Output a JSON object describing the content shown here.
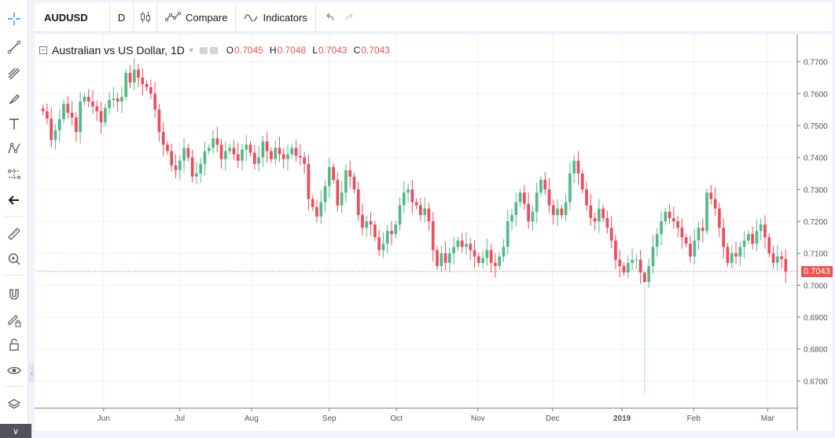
{
  "toolbar": {
    "symbol": "AUDUSD",
    "interval": "D",
    "compare_label": "Compare",
    "indicators_label": "Indicators"
  },
  "left_tools": [
    "crosshair-icon",
    "trend-line-icon",
    "fib-icon",
    "brush-icon",
    "text-icon",
    "pattern-icon",
    "prediction-icon",
    "back-arrow-icon",
    "ruler-icon",
    "zoom-in-icon",
    "magnet-icon",
    "lock-drawing-icon",
    "unlock-icon",
    "eye-icon",
    "layers-icon"
  ],
  "legend": {
    "title": "Australian vs US Dollar, 1D",
    "o_label": "O",
    "o_value": "0.7045",
    "h_label": "H",
    "h_value": "0.7048",
    "l_label": "L",
    "l_value": "0.7043",
    "c_label": "C",
    "c_value": "0.7043"
  },
  "last_price": "0.7043",
  "colors": {
    "up": "#53b987",
    "down": "#eb4d5c",
    "grid": "#eef0f4",
    "last_line": "#ef5350"
  },
  "chart_data": {
    "type": "candlestick",
    "title": "Australian vs US Dollar, 1D",
    "ylim": [
      0.6615,
      0.7785
    ],
    "y_ticks": [
      "0.7700",
      "0.7600",
      "0.7500",
      "0.7400",
      "0.7300",
      "0.7200",
      "0.7100",
      "0.7000",
      "0.6900",
      "0.6800",
      "0.6700"
    ],
    "x_ticks": [
      "Jun",
      "Jul",
      "Aug",
      "Sep",
      "Oct",
      "Nov",
      "Dec",
      "2019",
      "Feb",
      "Mar"
    ],
    "grid": true,
    "last_price": 0.7043,
    "close_series": [
      0.7545,
      0.7522,
      0.7455,
      0.7485,
      0.752,
      0.7568,
      0.754,
      0.7525,
      0.748,
      0.7575,
      0.759,
      0.7575,
      0.756,
      0.7545,
      0.751,
      0.7555,
      0.758,
      0.7585,
      0.7575,
      0.759,
      0.7665,
      0.7635,
      0.7675,
      0.765,
      0.763,
      0.762,
      0.76,
      0.755,
      0.748,
      0.744,
      0.742,
      0.7375,
      0.736,
      0.739,
      0.743,
      0.74,
      0.734,
      0.735,
      0.738,
      0.742,
      0.743,
      0.746,
      0.744,
      0.7395,
      0.742,
      0.743,
      0.741,
      0.739,
      0.7425,
      0.744,
      0.7415,
      0.738,
      0.74,
      0.745,
      0.742,
      0.7395,
      0.743,
      0.741,
      0.7395,
      0.741,
      0.743,
      0.7405,
      0.74,
      0.738,
      0.727,
      0.7245,
      0.7215,
      0.726,
      0.731,
      0.737,
      0.733,
      0.725,
      0.729,
      0.736,
      0.734,
      0.73,
      0.722,
      0.718,
      0.72,
      0.719,
      0.715,
      0.711,
      0.713,
      0.717,
      0.716,
      0.719,
      0.725,
      0.729,
      0.73,
      0.726,
      0.725,
      0.722,
      0.724,
      0.72,
      0.711,
      0.706,
      0.71,
      0.707,
      0.71,
      0.712,
      0.714,
      0.712,
      0.713,
      0.711,
      0.709,
      0.707,
      0.7085,
      0.711,
      0.707,
      0.706,
      0.709,
      0.712,
      0.72,
      0.722,
      0.726,
      0.729,
      0.7255,
      0.72,
      0.723,
      0.729,
      0.733,
      0.73,
      0.725,
      0.722,
      0.724,
      0.722,
      0.726,
      0.735,
      0.739,
      0.735,
      0.73,
      0.725,
      0.721,
      0.72,
      0.724,
      0.721,
      0.718,
      0.714,
      0.708,
      0.706,
      0.704,
      0.707,
      0.708,
      0.708,
      0.704,
      0.701,
      0.706,
      0.712,
      0.716,
      0.72,
      0.723,
      0.721,
      0.72,
      0.718,
      0.715,
      0.713,
      0.709,
      0.714,
      0.718,
      0.717,
      0.729,
      0.727,
      0.724,
      0.718,
      0.712,
      0.707,
      0.71,
      0.709,
      0.712,
      0.714,
      0.716,
      0.713,
      0.717,
      0.719,
      0.715,
      0.71,
      0.707,
      0.709,
      0.7082,
      0.7043
    ],
    "notable_low": 0.666
  }
}
